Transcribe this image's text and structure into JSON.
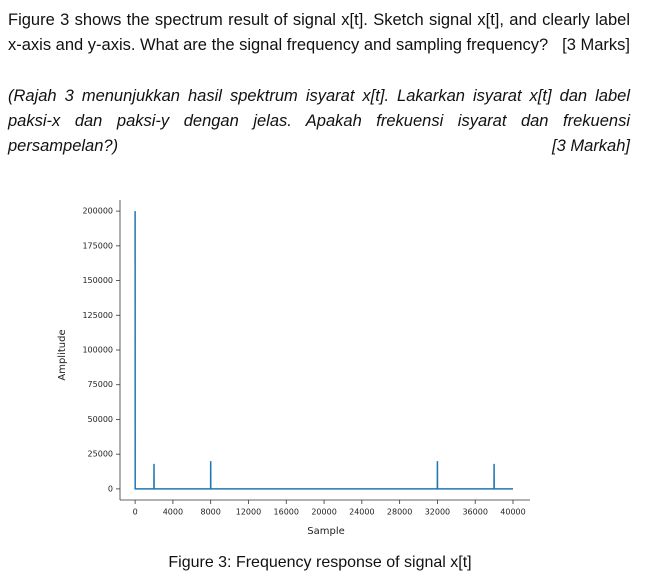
{
  "question": {
    "english": "Figure 3 shows the spectrum result of signal x[t]. Sketch signal x[t], and clearly label x-axis and y-axis. What are the signal frequency and sampling frequency?",
    "marks": "[3 Marks]",
    "malay": "(Rajah 3 menunjukkan hasil spektrum isyarat x[t]. Lakarkan isyarat x[t] dan label paksi-x dan paksi-y dengan jelas. Apakah frekuensi isyarat dan frekuensi persampelan?)",
    "marks_malay": "[3 Markah]"
  },
  "figure": {
    "caption": "Figure 3: Frequency response of signal x[t]"
  },
  "chart_data": {
    "type": "line",
    "xlabel": "Sample",
    "ylabel": "Amplitude",
    "color": "#1f77b4",
    "grid": false,
    "x": [
      0,
      10,
      1990,
      2000,
      2010,
      7990,
      8000,
      8010,
      31990,
      32000,
      32010,
      37990,
      38000,
      38010,
      40000
    ],
    "values": [
      200000,
      0,
      0,
      18000,
      0,
      0,
      20000,
      0,
      0,
      20000,
      0,
      0,
      18000,
      0,
      0
    ],
    "xlim": [
      -1600,
      41800
    ],
    "xticks": [
      0,
      4000,
      8000,
      12000,
      16000,
      20000,
      24000,
      28000,
      32000,
      36000,
      40000
    ],
    "ylim": [
      -8000,
      208000
    ],
    "yticks": [
      0,
      25000,
      50000,
      75000,
      100000,
      125000,
      150000,
      175000,
      200000
    ]
  }
}
